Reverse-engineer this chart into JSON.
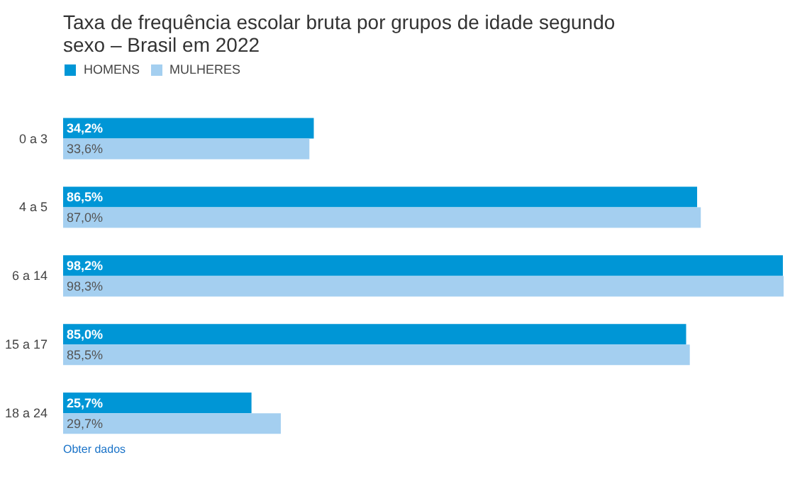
{
  "chart_data": {
    "type": "bar",
    "orientation": "horizontal",
    "title": "Taxa de frequência escolar bruta por grupos de idade segundo sexo – Brasil em 2022",
    "categories": [
      "0 a 3",
      "4 a 5",
      "6 a 14",
      "15 a 17",
      "18 a 24"
    ],
    "series": [
      {
        "name": "HOMENS",
        "color": "#0096d6",
        "values": [
          34.2,
          86.5,
          98.2,
          85.0,
          25.7
        ],
        "value_labels": [
          "34,2%",
          "86,5%",
          "98,2%",
          "85,0%",
          "25,7%"
        ]
      },
      {
        "name": "MULHERES",
        "color": "#a4cff0",
        "values": [
          33.6,
          87.0,
          98.3,
          85.5,
          29.7
        ],
        "value_labels": [
          "33,6%",
          "87,0%",
          "98,3%",
          "85,5%",
          "29,7%"
        ]
      }
    ],
    "legend": "top left",
    "grid": false,
    "annotations": [
      "Obter dados"
    ]
  }
}
